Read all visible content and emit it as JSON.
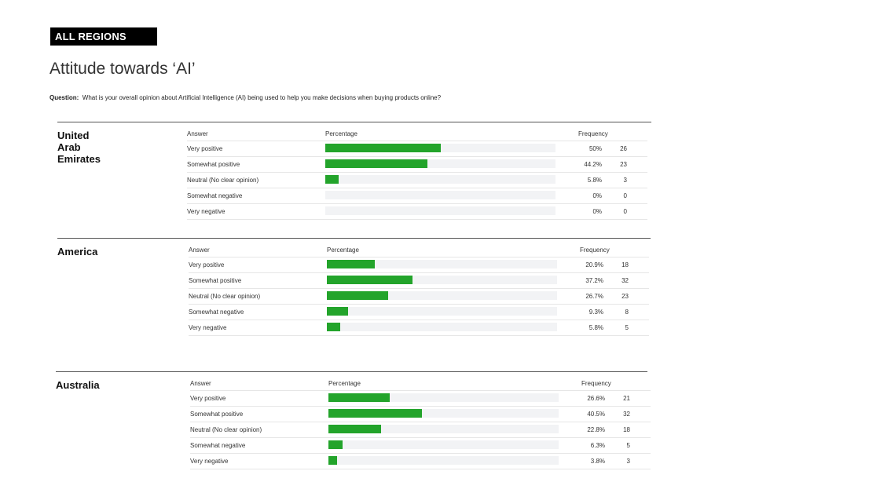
{
  "badge": "ALL REGIONS",
  "title": "Attitude towards ‘AI’",
  "question": {
    "label": "Question:",
    "text": "What is your overall opinion about Artificial Intelligence (AI) being used to help you make decisions when buying products online?"
  },
  "columns": {
    "answer": "Answer",
    "percentage": "Percentage",
    "frequency": "Frequency"
  },
  "colors": {
    "bar": "#23a42b",
    "track": "#f2f3f5"
  },
  "chart_data": [
    {
      "type": "bar",
      "title": "United Arab Emirates",
      "categories": [
        "Very positive",
        "Somewhat positive",
        "Neutral (No clear opinion)",
        "Somewhat negative",
        "Very negative"
      ],
      "values": [
        50,
        44.2,
        5.8,
        0,
        0
      ],
      "percent_labels": [
        "50%",
        "44.2%",
        "5.8%",
        "0%",
        "0%"
      ],
      "frequency": [
        26,
        23,
        3,
        0,
        0
      ],
      "xlim": [
        0,
        100
      ]
    },
    {
      "type": "bar",
      "title": "America",
      "categories": [
        "Very positive",
        "Somewhat positive",
        "Neutral (No clear opinion)",
        "Somewhat negative",
        "Very negative"
      ],
      "values": [
        20.9,
        37.2,
        26.7,
        9.3,
        5.8
      ],
      "percent_labels": [
        "20.9%",
        "37.2%",
        "26.7%",
        "9.3%",
        "5.8%"
      ],
      "frequency": [
        18,
        32,
        23,
        8,
        5
      ],
      "xlim": [
        0,
        100
      ]
    },
    {
      "type": "bar",
      "title": "Australia",
      "categories": [
        "Very positive",
        "Somewhat positive",
        "Neutral (No clear opinion)",
        "Somewhat negative",
        "Very negative"
      ],
      "values": [
        26.6,
        40.5,
        22.8,
        6.3,
        3.8
      ],
      "percent_labels": [
        "26.6%",
        "40.5%",
        "22.8%",
        "6.3%",
        "3.8%"
      ],
      "frequency": [
        21,
        32,
        18,
        5,
        3
      ],
      "xlim": [
        0,
        100
      ]
    }
  ]
}
